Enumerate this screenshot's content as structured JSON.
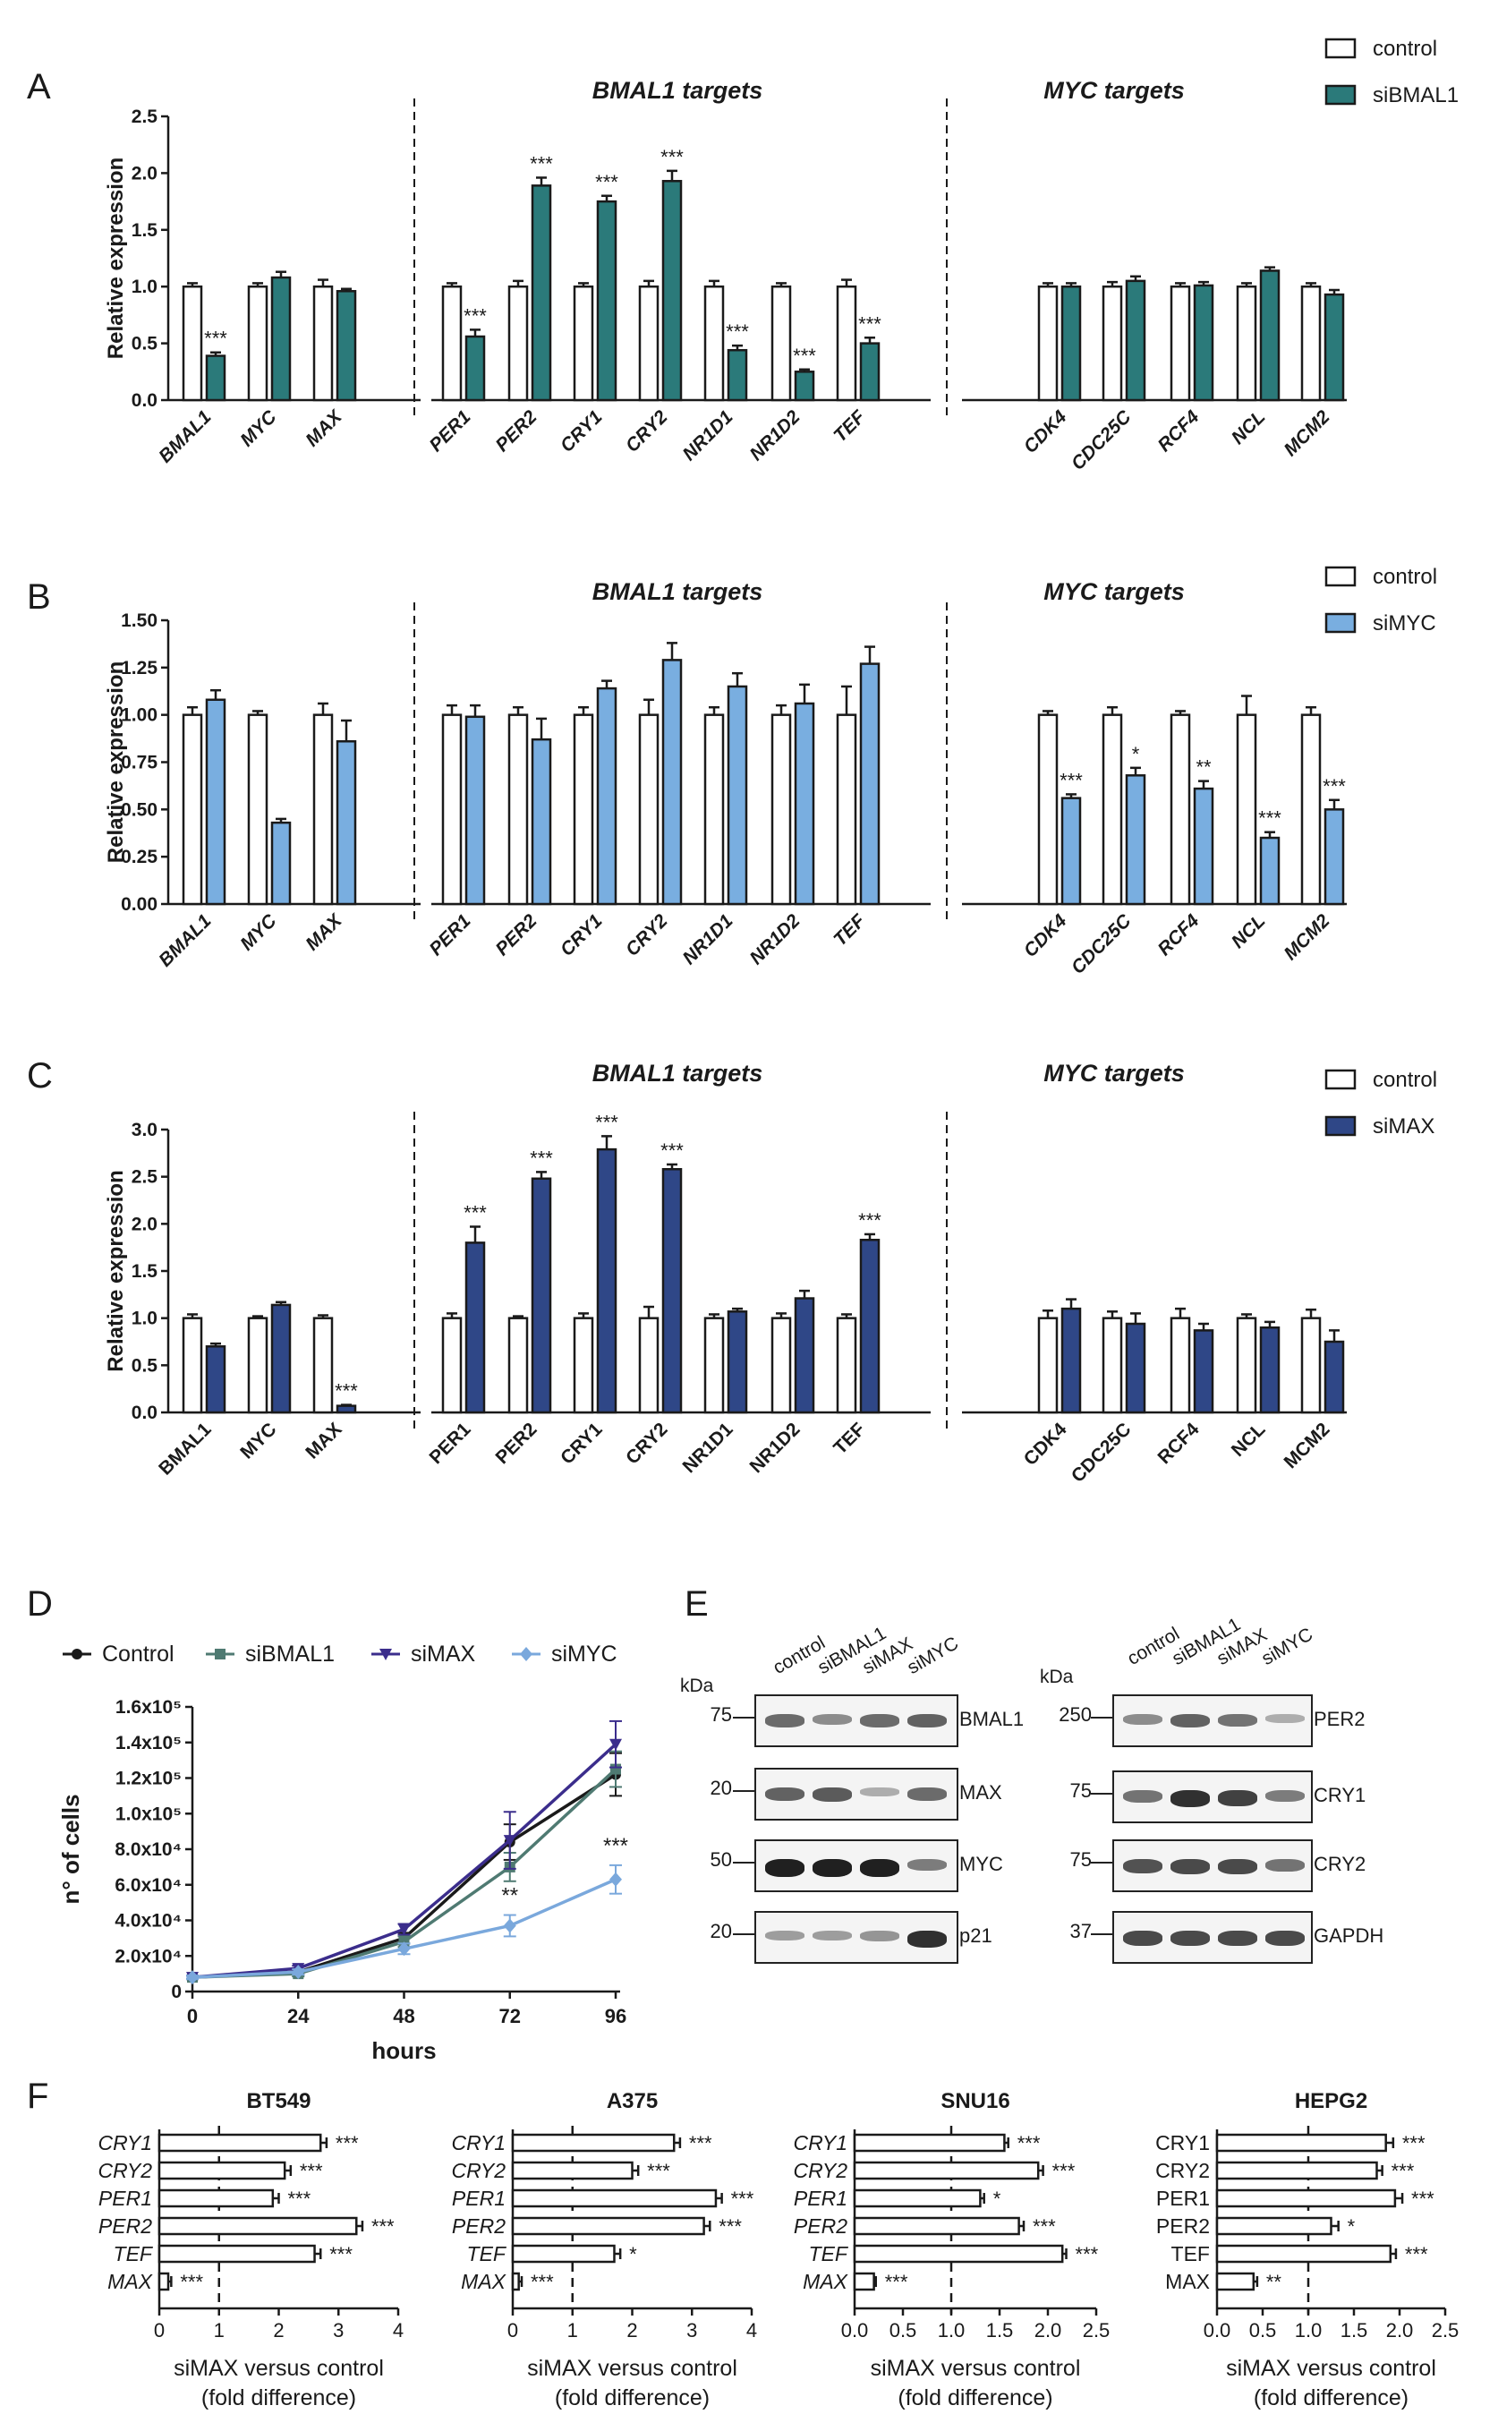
{
  "colors": {
    "siBMAL1": "#2b7a7a",
    "siMYC": "#79aee0",
    "siMAX": "#2f4787",
    "control": "#ffffff",
    "Control_line": "#1a1a1a",
    "siBMAL1_line": "#4f7a72",
    "siMAX_line": "#3b2d8c",
    "siMYC_line": "#7aa8dc"
  },
  "chart_data": [
    {
      "panel": "A",
      "type": "bar",
      "ylabel": "Relative expression",
      "yticks": [
        "0.0",
        "0.5",
        "1.0",
        "1.5",
        "2.0",
        "2.5"
      ],
      "ylim": [
        0,
        2.5
      ],
      "italic_labels": true,
      "group_titles": [
        "BMAL1 targets",
        "MYC targets"
      ],
      "legend": [
        "control",
        "siBMAL1"
      ],
      "categories": [
        "BMAL1",
        "MYC",
        "MAX",
        "PER1",
        "PER2",
        "CRY1",
        "CRY2",
        "NR1D1",
        "NR1D2",
        "TEF",
        "CDK4",
        "CDC25C",
        "RCF4",
        "NCL",
        "MCM2"
      ],
      "series": [
        {
          "name": "control",
          "values": [
            1.0,
            1.0,
            1.0,
            1.0,
            1.0,
            1.0,
            1.0,
            1.0,
            1.0,
            1.0,
            1.0,
            1.0,
            1.0,
            1.0,
            1.0
          ],
          "errors": [
            0.03,
            0.03,
            0.06,
            0.03,
            0.05,
            0.03,
            0.05,
            0.05,
            0.03,
            0.06,
            0.03,
            0.04,
            0.03,
            0.03,
            0.03
          ]
        },
        {
          "name": "siBMAL1",
          "values": [
            0.39,
            1.08,
            0.96,
            0.56,
            1.89,
            1.75,
            1.93,
            0.44,
            0.25,
            0.5,
            1.0,
            1.05,
            1.01,
            1.14,
            0.93
          ],
          "errors": [
            0.03,
            0.05,
            0.02,
            0.06,
            0.07,
            0.05,
            0.09,
            0.04,
            0.02,
            0.05,
            0.03,
            0.04,
            0.03,
            0.03,
            0.04
          ]
        }
      ],
      "significance": [
        "***",
        "",
        "",
        "***",
        "***",
        "***",
        "***",
        "***",
        "***",
        "***",
        "",
        "",
        "",
        "",
        ""
      ]
    },
    {
      "panel": "B",
      "type": "bar",
      "ylabel": "Relative expression",
      "yticks": [
        "0.00",
        "0.25",
        "0.50",
        "0.75",
        "1.00",
        "1.25",
        "1.50"
      ],
      "ylim": [
        0,
        1.5
      ],
      "italic_labels": true,
      "group_titles": [
        "BMAL1 targets",
        "MYC targets"
      ],
      "legend": [
        "control",
        "siMYC"
      ],
      "categories": [
        "BMAL1",
        "MYC",
        "MAX",
        "PER1",
        "PER2",
        "CRY1",
        "CRY2",
        "NR1D1",
        "NR1D2",
        "TEF",
        "CDK4",
        "CDC25C",
        "RCF4",
        "NCL",
        "MCM2"
      ],
      "series": [
        {
          "name": "control",
          "values": [
            1.0,
            1.0,
            1.0,
            1.0,
            1.0,
            1.0,
            1.0,
            1.0,
            1.0,
            1.0,
            1.0,
            1.0,
            1.0,
            1.0,
            1.0
          ],
          "errors": [
            0.04,
            0.02,
            0.06,
            0.05,
            0.04,
            0.04,
            0.08,
            0.04,
            0.05,
            0.15,
            0.02,
            0.04,
            0.02,
            0.1,
            0.04
          ]
        },
        {
          "name": "siMYC",
          "values": [
            1.08,
            0.43,
            0.86,
            0.99,
            0.87,
            1.14,
            1.29,
            1.15,
            1.06,
            1.27,
            0.56,
            0.68,
            0.61,
            0.35,
            0.5
          ],
          "errors": [
            0.05,
            0.02,
            0.11,
            0.06,
            0.11,
            0.04,
            0.09,
            0.07,
            0.1,
            0.09,
            0.02,
            0.04,
            0.04,
            0.03,
            0.05
          ]
        }
      ],
      "significance": [
        "",
        "",
        "",
        "",
        "",
        "",
        "",
        "",
        "",
        "",
        "***",
        "*",
        "**",
        "***",
        "***"
      ]
    },
    {
      "panel": "C",
      "type": "bar",
      "ylabel": "Relative expression",
      "yticks": [
        "0.0",
        "0.5",
        "1.0",
        "1.5",
        "2.0",
        "2.5",
        "3.0"
      ],
      "ylim": [
        0,
        3.0
      ],
      "italic_labels": false,
      "group_titles": [
        "BMAL1 targets",
        "MYC targets"
      ],
      "legend": [
        "control",
        "siMAX"
      ],
      "categories": [
        "BMAL1",
        "MYC",
        "MAX",
        "PER1",
        "PER2",
        "CRY1",
        "CRY2",
        "NR1D1",
        "NR1D2",
        "TEF",
        "CDK4",
        "CDC25C",
        "RCF4",
        "NCL",
        "MCM2"
      ],
      "series": [
        {
          "name": "control",
          "values": [
            1.0,
            1.0,
            1.0,
            1.0,
            1.0,
            1.0,
            1.0,
            1.0,
            1.0,
            1.0,
            1.0,
            1.0,
            1.0,
            1.0,
            1.0
          ],
          "errors": [
            0.04,
            0.02,
            0.03,
            0.05,
            0.02,
            0.05,
            0.12,
            0.04,
            0.05,
            0.04,
            0.08,
            0.07,
            0.1,
            0.04,
            0.09
          ]
        },
        {
          "name": "siMAX",
          "values": [
            0.7,
            1.14,
            0.07,
            1.8,
            2.48,
            2.79,
            2.58,
            1.07,
            1.21,
            1.83,
            1.1,
            0.94,
            0.87,
            0.9,
            0.75
          ],
          "errors": [
            0.03,
            0.03,
            0.01,
            0.17,
            0.07,
            0.14,
            0.05,
            0.03,
            0.08,
            0.06,
            0.1,
            0.11,
            0.07,
            0.06,
            0.12
          ]
        }
      ],
      "significance": [
        "",
        "",
        "***",
        "***",
        "***",
        "***",
        "***",
        "",
        "",
        "***",
        "",
        "",
        "",
        "",
        ""
      ]
    },
    {
      "panel": "D",
      "type": "line",
      "xlabel": "hours",
      "ylabel": "n° of cells",
      "x": [
        0,
        24,
        48,
        72,
        96
      ],
      "xticks": [
        "0",
        "24",
        "48",
        "72",
        "96"
      ],
      "yticks": [
        "0",
        "2.0x10⁴",
        "4.0x10⁴",
        "6.0x10⁴",
        "8.0x10⁴",
        "1.0x10⁵",
        "1.2x10⁵",
        "1.4x10⁵",
        "1.6x10⁵"
      ],
      "ylim": [
        0,
        160000
      ],
      "legend": [
        "Control",
        "siBMAL1",
        "siMAX",
        "siMYC"
      ],
      "series": [
        {
          "name": "Control",
          "values": [
            8000,
            11000,
            30000,
            84000,
            122000
          ],
          "errors": [
            1000,
            1500,
            3000,
            10000,
            12000
          ]
        },
        {
          "name": "siBMAL1",
          "values": [
            8000,
            10000,
            28000,
            70000,
            125000
          ],
          "errors": [
            1000,
            1500,
            3000,
            8000,
            10000
          ]
        },
        {
          "name": "siMAX",
          "values": [
            8000,
            13000,
            35000,
            85000,
            139000
          ],
          "errors": [
            1000,
            1500,
            3000,
            16000,
            13000
          ]
        },
        {
          "name": "siMYC",
          "values": [
            8000,
            11000,
            24000,
            37000,
            63000
          ],
          "errors": [
            1000,
            1500,
            3000,
            6000,
            8000
          ]
        }
      ],
      "significance": [
        "",
        "",
        "",
        "**",
        "***"
      ]
    },
    {
      "panel": "F",
      "type": "bar",
      "orientation": "horizontal",
      "xlabel": "siMAX versus control (fold difference)",
      "charts": [
        {
          "title": "BT549",
          "italic": true,
          "categories": [
            "CRY1",
            "CRY2",
            "PER1",
            "PER2",
            "TEF",
            "MAX"
          ],
          "values": [
            2.7,
            2.1,
            1.9,
            3.3,
            2.6,
            0.15
          ],
          "errors": [
            0.1,
            0.1,
            0.1,
            0.1,
            0.1,
            0.05
          ],
          "significance": [
            "***",
            "***",
            "***",
            "***",
            "***",
            "***"
          ],
          "xticks": [
            "0",
            "1",
            "2",
            "3",
            "4"
          ],
          "xlim": [
            0,
            4
          ]
        },
        {
          "title": "A375",
          "italic": true,
          "categories": [
            "CRY1",
            "CRY2",
            "PER1",
            "PER2",
            "TEF",
            "MAX"
          ],
          "values": [
            2.7,
            2.0,
            3.4,
            3.2,
            1.7,
            0.1
          ],
          "errors": [
            0.1,
            0.1,
            0.1,
            0.1,
            0.1,
            0.05
          ],
          "significance": [
            "***",
            "***",
            "***",
            "***",
            "*",
            "***"
          ],
          "xticks": [
            "0",
            "1",
            "2",
            "3",
            "4"
          ],
          "xlim": [
            0,
            4
          ]
        },
        {
          "title": "SNU16",
          "italic": true,
          "categories": [
            "CRY1",
            "CRY2",
            "PER1",
            "PER2",
            "TEF",
            "MAX"
          ],
          "values": [
            1.55,
            1.9,
            1.3,
            1.7,
            2.15,
            0.2
          ],
          "errors": [
            0.04,
            0.05,
            0.04,
            0.05,
            0.04,
            0.02
          ],
          "significance": [
            "***",
            "***",
            "*",
            "***",
            "***",
            "***"
          ],
          "xticks": [
            "0.0",
            "0.5",
            "1.0",
            "1.5",
            "2.0",
            "2.5"
          ],
          "xlim": [
            0,
            2.5
          ]
        },
        {
          "title": "HEPG2",
          "italic": false,
          "categories": [
            "CRY1",
            "CRY2",
            "PER1",
            "PER2",
            "TEF",
            "MAX"
          ],
          "values": [
            1.85,
            1.75,
            1.95,
            1.25,
            1.9,
            0.4
          ],
          "errors": [
            0.08,
            0.06,
            0.08,
            0.08,
            0.06,
            0.04
          ],
          "significance": [
            "***",
            "***",
            "***",
            "*",
            "***",
            "**"
          ],
          "xticks": [
            "0.0",
            "0.5",
            "1.0",
            "1.5",
            "2.0",
            "2.5"
          ],
          "xlim": [
            0,
            2.5
          ]
        }
      ]
    }
  ],
  "panel_E": {
    "kda_label": "kDa",
    "left": {
      "lanes": [
        "control",
        "siBMAL1",
        "siMAX",
        "siMYC"
      ],
      "rows": [
        {
          "label": "BMAL1",
          "kda": "75"
        },
        {
          "label": "MAX",
          "kda": "20"
        },
        {
          "label": "MYC",
          "kda": "50"
        },
        {
          "label": "p21",
          "kda": "20"
        }
      ]
    },
    "right": {
      "lanes": [
        "control",
        "siBMAL1",
        "siMAX",
        "siMYC"
      ],
      "rows": [
        {
          "label": "PER2",
          "kda": "250"
        },
        {
          "label": "CRY1",
          "kda": "75"
        },
        {
          "label": "CRY2",
          "kda": "75"
        },
        {
          "label": "GAPDH",
          "kda": "37"
        }
      ]
    }
  },
  "panel_letters": [
    "A",
    "B",
    "C",
    "D",
    "E",
    "F"
  ]
}
